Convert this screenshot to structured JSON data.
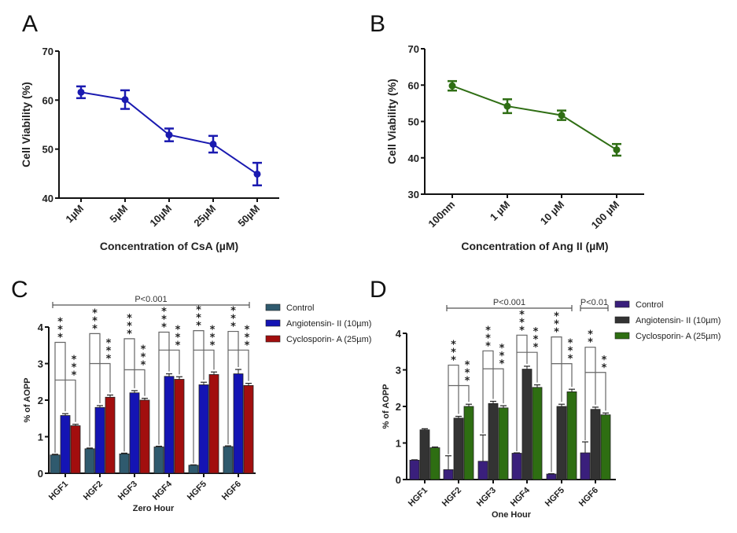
{
  "chart_data": [
    {
      "panel": "A",
      "type": "line",
      "title": "",
      "xlabel": "Concentration of CsA (µM)",
      "ylabel": "Cell Viability (%)",
      "categories": [
        "1µM",
        "5µM",
        "10µM",
        "25µM",
        "50µM"
      ],
      "series": [
        {
          "name": "CsA",
          "color": "#1a1ab0",
          "values": [
            61.6,
            60.1,
            52.9,
            51.0,
            44.9
          ],
          "errors": [
            1.2,
            1.9,
            1.3,
            1.7,
            2.3
          ]
        }
      ],
      "ylim": [
        40,
        70
      ],
      "yticks": [
        40,
        50,
        60,
        70
      ],
      "grid": false
    },
    {
      "panel": "B",
      "type": "line",
      "title": "",
      "xlabel": "Concentration of Ang II (µM)",
      "ylabel": "Cell Viability (%)",
      "categories": [
        "100nm",
        "1 µM",
        "10 µM",
        "100 µM"
      ],
      "series": [
        {
          "name": "Ang II",
          "color": "#2f6e14",
          "values": [
            59.8,
            54.2,
            51.7,
            42.2
          ],
          "errors": [
            1.3,
            1.9,
            1.3,
            1.6
          ]
        }
      ],
      "ylim": [
        30,
        70
      ],
      "yticks": [
        30,
        40,
        50,
        60,
        70
      ],
      "grid": false
    },
    {
      "panel": "C",
      "type": "bar",
      "title": "",
      "xlabel": "Zero Hour",
      "ylabel": "% of AOPP",
      "categories": [
        "HGF1",
        "HGF2",
        "HGF3",
        "HGF4",
        "HGF5",
        "HGF6"
      ],
      "series": [
        {
          "name": "Control",
          "color": "#2f5a6e",
          "values": [
            0.5,
            0.67,
            0.53,
            0.72,
            0.22,
            0.73
          ],
          "errors": [
            0.02,
            0.02,
            0.02,
            0.02,
            0.01,
            0.02
          ]
        },
        {
          "name": "Angiotensin- II (10µm)",
          "color": "#1414b4",
          "values": [
            1.58,
            1.8,
            2.2,
            2.65,
            2.42,
            2.72
          ],
          "errors": [
            0.05,
            0.05,
            0.06,
            0.07,
            0.07,
            0.12
          ]
        },
        {
          "name": "Cyclosporin- A (25µm)",
          "color": "#a20e0e",
          "values": [
            1.3,
            2.08,
            2.0,
            2.57,
            2.7,
            2.4
          ],
          "errors": [
            0.04,
            0.06,
            0.05,
            0.07,
            0.07,
            0.06
          ]
        }
      ],
      "significance": {
        "overall": "P<0.001",
        "pairs": [
          {
            "group": "HGF1",
            "ctrl_vs_ang": "***",
            "ctrl_vs_csa": "***",
            "bracket1": 3.58,
            "bracket2": 2.55
          },
          {
            "group": "HGF2",
            "ctrl_vs_ang": "***",
            "ctrl_vs_csa": "***",
            "bracket1": 3.82,
            "bracket2": 3.0
          },
          {
            "group": "HGF3",
            "ctrl_vs_ang": "***",
            "ctrl_vs_csa": "***",
            "bracket1": 3.68,
            "bracket2": 2.83
          },
          {
            "group": "HGF4",
            "ctrl_vs_ang": "***",
            "ctrl_vs_csa": "***",
            "bracket1": 3.86,
            "bracket2": 3.37
          },
          {
            "group": "HGF5",
            "ctrl_vs_ang": "***",
            "ctrl_vs_csa": "***",
            "bracket1": 3.9,
            "bracket2": 3.37
          },
          {
            "group": "HGF6",
            "ctrl_vs_ang": "***",
            "ctrl_vs_csa": "***",
            "bracket1": 3.88,
            "bracket2": 3.37
          }
        ]
      },
      "ylim": [
        0,
        4
      ],
      "yticks": [
        0,
        1,
        2,
        3,
        4
      ],
      "legend": "right",
      "grid": false
    },
    {
      "panel": "D",
      "type": "bar",
      "title": "",
      "xlabel": "One Hour",
      "ylabel": "% of AOPP",
      "categories": [
        "HGF1",
        "HGF2",
        "HGF3",
        "HGF4",
        "HGF5",
        "HGF6"
      ],
      "series": [
        {
          "name": "Control",
          "color": "#3a1f7c",
          "values": [
            0.53,
            0.27,
            0.5,
            0.72,
            0.15,
            0.73
          ],
          "errors": [
            0.01,
            0.38,
            0.72,
            0.01,
            0.01,
            0.3
          ]
        },
        {
          "name": "Angiotensin- II (10µm)",
          "color": "#333333",
          "values": [
            1.36,
            1.68,
            2.08,
            3.02,
            2.0,
            1.92
          ],
          "errors": [
            0.03,
            0.05,
            0.06,
            0.08,
            0.06,
            0.06
          ]
        },
        {
          "name": "Cyclosporin- A (25µm)",
          "color": "#2e6e12",
          "values": [
            0.87,
            2.0,
            1.96,
            2.52,
            2.4,
            1.77
          ],
          "errors": [
            0.02,
            0.06,
            0.06,
            0.07,
            0.07,
            0.05
          ]
        }
      ],
      "significance": {
        "ranges": [
          {
            "label": "P<0.001",
            "from": "HGF2",
            "to": "HGF5"
          },
          {
            "label": "P<0.01",
            "from": "HGF6",
            "to": "HGF6"
          }
        ],
        "pairs": [
          {
            "group": "HGF2",
            "ctrl_vs_ang": "***",
            "ctrl_vs_csa": "***",
            "bracket1": 3.13,
            "bracket2": 2.57
          },
          {
            "group": "HGF3",
            "ctrl_vs_ang": "***",
            "ctrl_vs_csa": "***",
            "bracket1": 3.52,
            "bracket2": 3.03
          },
          {
            "group": "HGF4",
            "ctrl_vs_ang": "***",
            "ctrl_vs_csa": "***",
            "bracket1": 3.95,
            "bracket2": 3.48
          },
          {
            "group": "HGF5",
            "ctrl_vs_ang": "***",
            "ctrl_vs_csa": "***",
            "bracket1": 3.9,
            "bracket2": 3.17
          },
          {
            "group": "HGF6",
            "ctrl_vs_ang": "**",
            "ctrl_vs_csa": "**",
            "bracket1": 3.62,
            "bracket2": 2.93
          }
        ]
      },
      "ylim": [
        0,
        4
      ],
      "yticks": [
        0,
        1,
        2,
        3,
        4
      ],
      "legend": "right",
      "grid": false
    }
  ],
  "panel_labels": [
    "A",
    "B",
    "C",
    "D"
  ]
}
